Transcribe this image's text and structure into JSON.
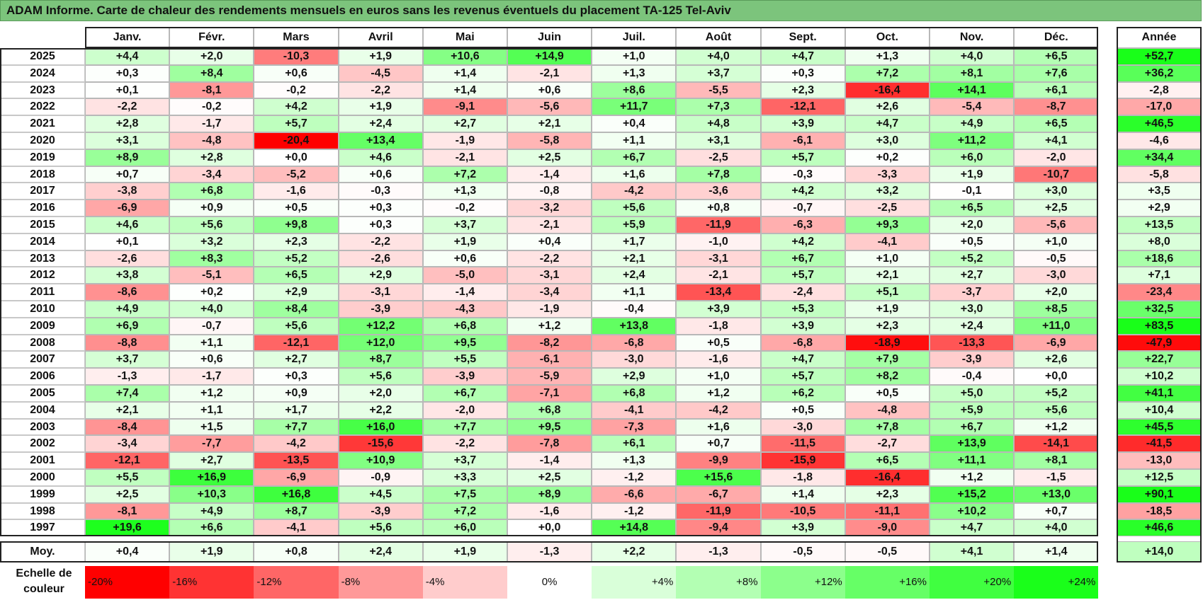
{
  "title": "ADAM Informe. Carte de chaleur des rendements mensuels en euros sans les revenus éventuels du placement TA-125 Tel-Aviv",
  "chart_data": {
    "type": "heatmap",
    "title": "ADAM Informe. Carte de chaleur des rendements mensuels en euros sans les revenus éventuels du placement TA-125 Tel-Aviv",
    "columns": [
      "Janv.",
      "Févr.",
      "Mars",
      "Avril",
      "Mai",
      "Juin",
      "Juil.",
      "Août",
      "Sept.",
      "Oct.",
      "Nov.",
      "Déc."
    ],
    "annual_header": "Année",
    "average_label": "Moy.",
    "rows": [
      {
        "year": "2025",
        "values": [
          "+4,4",
          "+2,0",
          "-10,3",
          "+1,9",
          "+10,6",
          "+14,9",
          "+1,0",
          "+4,0",
          "+4,7",
          "+1,3",
          "+4,0",
          "+6,5"
        ],
        "annual": "+52,7"
      },
      {
        "year": "2024",
        "values": [
          "+0,3",
          "+8,4",
          "+0,6",
          "-4,5",
          "+1,4",
          "-2,1",
          "+1,3",
          "+3,7",
          "+0,3",
          "+7,2",
          "+8,1",
          "+7,6"
        ],
        "annual": "+36,2"
      },
      {
        "year": "2023",
        "values": [
          "+0,1",
          "-8,1",
          "-0,2",
          "-2,2",
          "+1,4",
          "+0,6",
          "+8,6",
          "-5,5",
          "+2,3",
          "-16,4",
          "+14,1",
          "+6,1"
        ],
        "annual": "-2,8"
      },
      {
        "year": "2022",
        "values": [
          "-2,2",
          "-0,2",
          "+4,2",
          "+1,9",
          "-9,1",
          "-5,6",
          "+11,7",
          "+7,3",
          "-12,1",
          "+2,6",
          "-5,4",
          "-8,7"
        ],
        "annual": "-17,0"
      },
      {
        "year": "2021",
        "values": [
          "+2,8",
          "-1,7",
          "+5,7",
          "+2,4",
          "+2,7",
          "+2,1",
          "+0,4",
          "+4,8",
          "+3,9",
          "+4,7",
          "+4,9",
          "+6,5"
        ],
        "annual": "+46,5"
      },
      {
        "year": "2020",
        "values": [
          "+3,1",
          "-4,8",
          "-20,4",
          "+13,4",
          "-1,9",
          "-5,8",
          "+1,1",
          "+3,1",
          "-6,1",
          "+3,0",
          "+11,2",
          "+4,1"
        ],
        "annual": "-4,6"
      },
      {
        "year": "2019",
        "values": [
          "+8,9",
          "+2,8",
          "+0,0",
          "+4,6",
          "-2,1",
          "+2,5",
          "+6,7",
          "-2,5",
          "+5,7",
          "+0,2",
          "+6,0",
          "-2,0"
        ],
        "annual": "+34,4"
      },
      {
        "year": "2018",
        "values": [
          "+0,7",
          "-3,4",
          "-5,2",
          "+0,6",
          "+7,2",
          "-1,4",
          "+1,6",
          "+7,8",
          "-0,3",
          "-3,3",
          "+1,9",
          "-10,7"
        ],
        "annual": "-5,8"
      },
      {
        "year": "2017",
        "values": [
          "-3,8",
          "+6,8",
          "-1,6",
          "-0,3",
          "+1,3",
          "-0,8",
          "-4,2",
          "-3,6",
          "+4,2",
          "+3,2",
          "-0,1",
          "+3,0"
        ],
        "annual": "+3,5"
      },
      {
        "year": "2016",
        "values": [
          "-6,9",
          "+0,9",
          "+0,5",
          "+0,3",
          "-0,2",
          "-3,2",
          "+5,6",
          "+0,8",
          "-0,7",
          "-2,5",
          "+6,5",
          "+2,5"
        ],
        "annual": "+2,9"
      },
      {
        "year": "2015",
        "values": [
          "+4,6",
          "+5,6",
          "+9,8",
          "+0,3",
          "+3,7",
          "-2,1",
          "+5,9",
          "-11,9",
          "-6,3",
          "+9,3",
          "+2,0",
          "-5,6"
        ],
        "annual": "+13,5"
      },
      {
        "year": "2014",
        "values": [
          "+0,1",
          "+3,2",
          "+2,3",
          "-2,2",
          "+1,9",
          "+0,4",
          "+1,7",
          "-1,0",
          "+4,2",
          "-4,1",
          "+0,5",
          "+1,0"
        ],
        "annual": "+8,0"
      },
      {
        "year": "2013",
        "values": [
          "-2,6",
          "+8,3",
          "+5,2",
          "-2,6",
          "+0,6",
          "-2,2",
          "+2,1",
          "-3,1",
          "+6,7",
          "+1,0",
          "+5,2",
          "-0,5"
        ],
        "annual": "+18,6"
      },
      {
        "year": "2012",
        "values": [
          "+3,8",
          "-5,1",
          "+6,5",
          "+2,9",
          "-5,0",
          "-3,1",
          "+2,4",
          "-2,1",
          "+5,7",
          "+2,1",
          "+2,7",
          "-3,0"
        ],
        "annual": "+7,1"
      },
      {
        "year": "2011",
        "values": [
          "-8,6",
          "+0,2",
          "+2,9",
          "-3,1",
          "-1,4",
          "-3,4",
          "+1,1",
          "-13,4",
          "-2,4",
          "+5,1",
          "-3,7",
          "+2,0"
        ],
        "annual": "-23,4"
      },
      {
        "year": "2010",
        "values": [
          "+4,9",
          "+4,0",
          "+8,4",
          "-3,9",
          "-4,3",
          "-1,9",
          "-0,4",
          "+3,9",
          "+5,3",
          "+1,9",
          "+3,0",
          "+8,5"
        ],
        "annual": "+32,5"
      },
      {
        "year": "2009",
        "values": [
          "+6,9",
          "-0,7",
          "+5,6",
          "+12,2",
          "+6,8",
          "+1,2",
          "+13,8",
          "-1,8",
          "+3,9",
          "+2,3",
          "+2,4",
          "+11,0"
        ],
        "annual": "+83,5"
      },
      {
        "year": "2008",
        "values": [
          "-8,8",
          "+1,1",
          "-12,1",
          "+12,0",
          "+9,5",
          "-8,2",
          "-6,8",
          "+0,5",
          "-6,8",
          "-18,9",
          "-13,3",
          "-6,9"
        ],
        "annual": "-47,9"
      },
      {
        "year": "2007",
        "values": [
          "+3,7",
          "+0,6",
          "+2,7",
          "+8,7",
          "+5,5",
          "-6,1",
          "-3,0",
          "-1,6",
          "+4,7",
          "+7,9",
          "-3,9",
          "+2,6"
        ],
        "annual": "+22,7"
      },
      {
        "year": "2006",
        "values": [
          "-1,3",
          "-1,7",
          "+0,3",
          "+5,6",
          "-3,9",
          "-5,9",
          "+2,9",
          "+1,0",
          "+5,7",
          "+8,2",
          "-0,4",
          "+0,0"
        ],
        "annual": "+10,2"
      },
      {
        "year": "2005",
        "values": [
          "+7,4",
          "+1,2",
          "+0,9",
          "+2,0",
          "+6,7",
          "-7,1",
          "+6,8",
          "+1,2",
          "+6,2",
          "+0,5",
          "+5,0",
          "+5,2"
        ],
        "annual": "+41,1"
      },
      {
        "year": "2004",
        "values": [
          "+2,1",
          "+1,1",
          "+1,7",
          "+2,2",
          "-2,0",
          "+6,8",
          "-4,1",
          "-4,2",
          "+0,5",
          "-4,8",
          "+5,9",
          "+5,6"
        ],
        "annual": "+10,4"
      },
      {
        "year": "2003",
        "values": [
          "-8,4",
          "+1,5",
          "+7,7",
          "+16,0",
          "+7,7",
          "+9,5",
          "-7,3",
          "+1,6",
          "-3,0",
          "+7,8",
          "+6,7",
          "+1,2"
        ],
        "annual": "+45,5"
      },
      {
        "year": "2002",
        "values": [
          "-3,4",
          "-7,7",
          "-4,2",
          "-15,6",
          "-2,2",
          "-7,8",
          "+6,1",
          "+0,7",
          "-11,5",
          "-2,7",
          "+13,9",
          "-14,1"
        ],
        "annual": "-41,5"
      },
      {
        "year": "2001",
        "values": [
          "-12,1",
          "+2,7",
          "-13,5",
          "+10,9",
          "+3,7",
          "-1,4",
          "+1,3",
          "-9,9",
          "-15,9",
          "+6,5",
          "+11,1",
          "+8,1"
        ],
        "annual": "-13,0"
      },
      {
        "year": "2000",
        "values": [
          "+5,5",
          "+16,9",
          "-6,9",
          "-0,9",
          "+3,3",
          "+2,5",
          "-1,2",
          "+15,6",
          "-1,8",
          "-16,4",
          "+1,2",
          "-1,5"
        ],
        "annual": "+12,5"
      },
      {
        "year": "1999",
        "values": [
          "+2,5",
          "+10,3",
          "+16,8",
          "+4,5",
          "+7,5",
          "+8,9",
          "-6,6",
          "-6,7",
          "+1,4",
          "+2,3",
          "+15,2",
          "+13,0"
        ],
        "annual": "+90,1"
      },
      {
        "year": "1998",
        "values": [
          "-8,1",
          "+4,9",
          "+8,7",
          "-3,9",
          "+7,2",
          "-1,6",
          "-1,2",
          "-11,9",
          "-10,5",
          "-11,1",
          "+10,2",
          "+0,7"
        ],
        "annual": "-18,5"
      },
      {
        "year": "1997",
        "values": [
          "+19,6",
          "+6,6",
          "-4,1",
          "+5,6",
          "+6,0",
          "+0,0",
          "+14,8",
          "-9,4",
          "+3,9",
          "-9,0",
          "+4,7",
          "+4,0"
        ],
        "annual": "+46,6"
      }
    ],
    "average": {
      "values": [
        "+0,4",
        "+1,9",
        "+0,8",
        "+2,4",
        "+1,9",
        "-1,3",
        "+2,2",
        "-1,3",
        "-0,5",
        "-0,5",
        "+4,1",
        "+1,4"
      ],
      "annual": "+14,0"
    },
    "color_scale": {
      "label_line1": "Echelle de",
      "label_line2": "couleur",
      "stops": [
        {
          "label": "-20%",
          "value": -20,
          "color": "#ff0000"
        },
        {
          "label": "-16%",
          "value": -16,
          "color": "#ff3333"
        },
        {
          "label": "-12%",
          "value": -12,
          "color": "#ff6666"
        },
        {
          "label": "-8%",
          "value": -8,
          "color": "#ff9999"
        },
        {
          "label": "-4%",
          "value": -4,
          "color": "#ffcccc"
        },
        {
          "label": "0%",
          "value": 0,
          "color": "#ffffff"
        },
        {
          "label": "+4%",
          "value": 4,
          "color": "#d9ffd9"
        },
        {
          "label": "+8%",
          "value": 8,
          "color": "#b3ffb3"
        },
        {
          "label": "+12%",
          "value": 12,
          "color": "#8cff8c"
        },
        {
          "label": "+16%",
          "value": 16,
          "color": "#66ff66"
        },
        {
          "label": "+20%",
          "value": 20,
          "color": "#40ff40"
        },
        {
          "label": "+24%",
          "value": 24,
          "color": "#1aff1a"
        }
      ]
    }
  }
}
